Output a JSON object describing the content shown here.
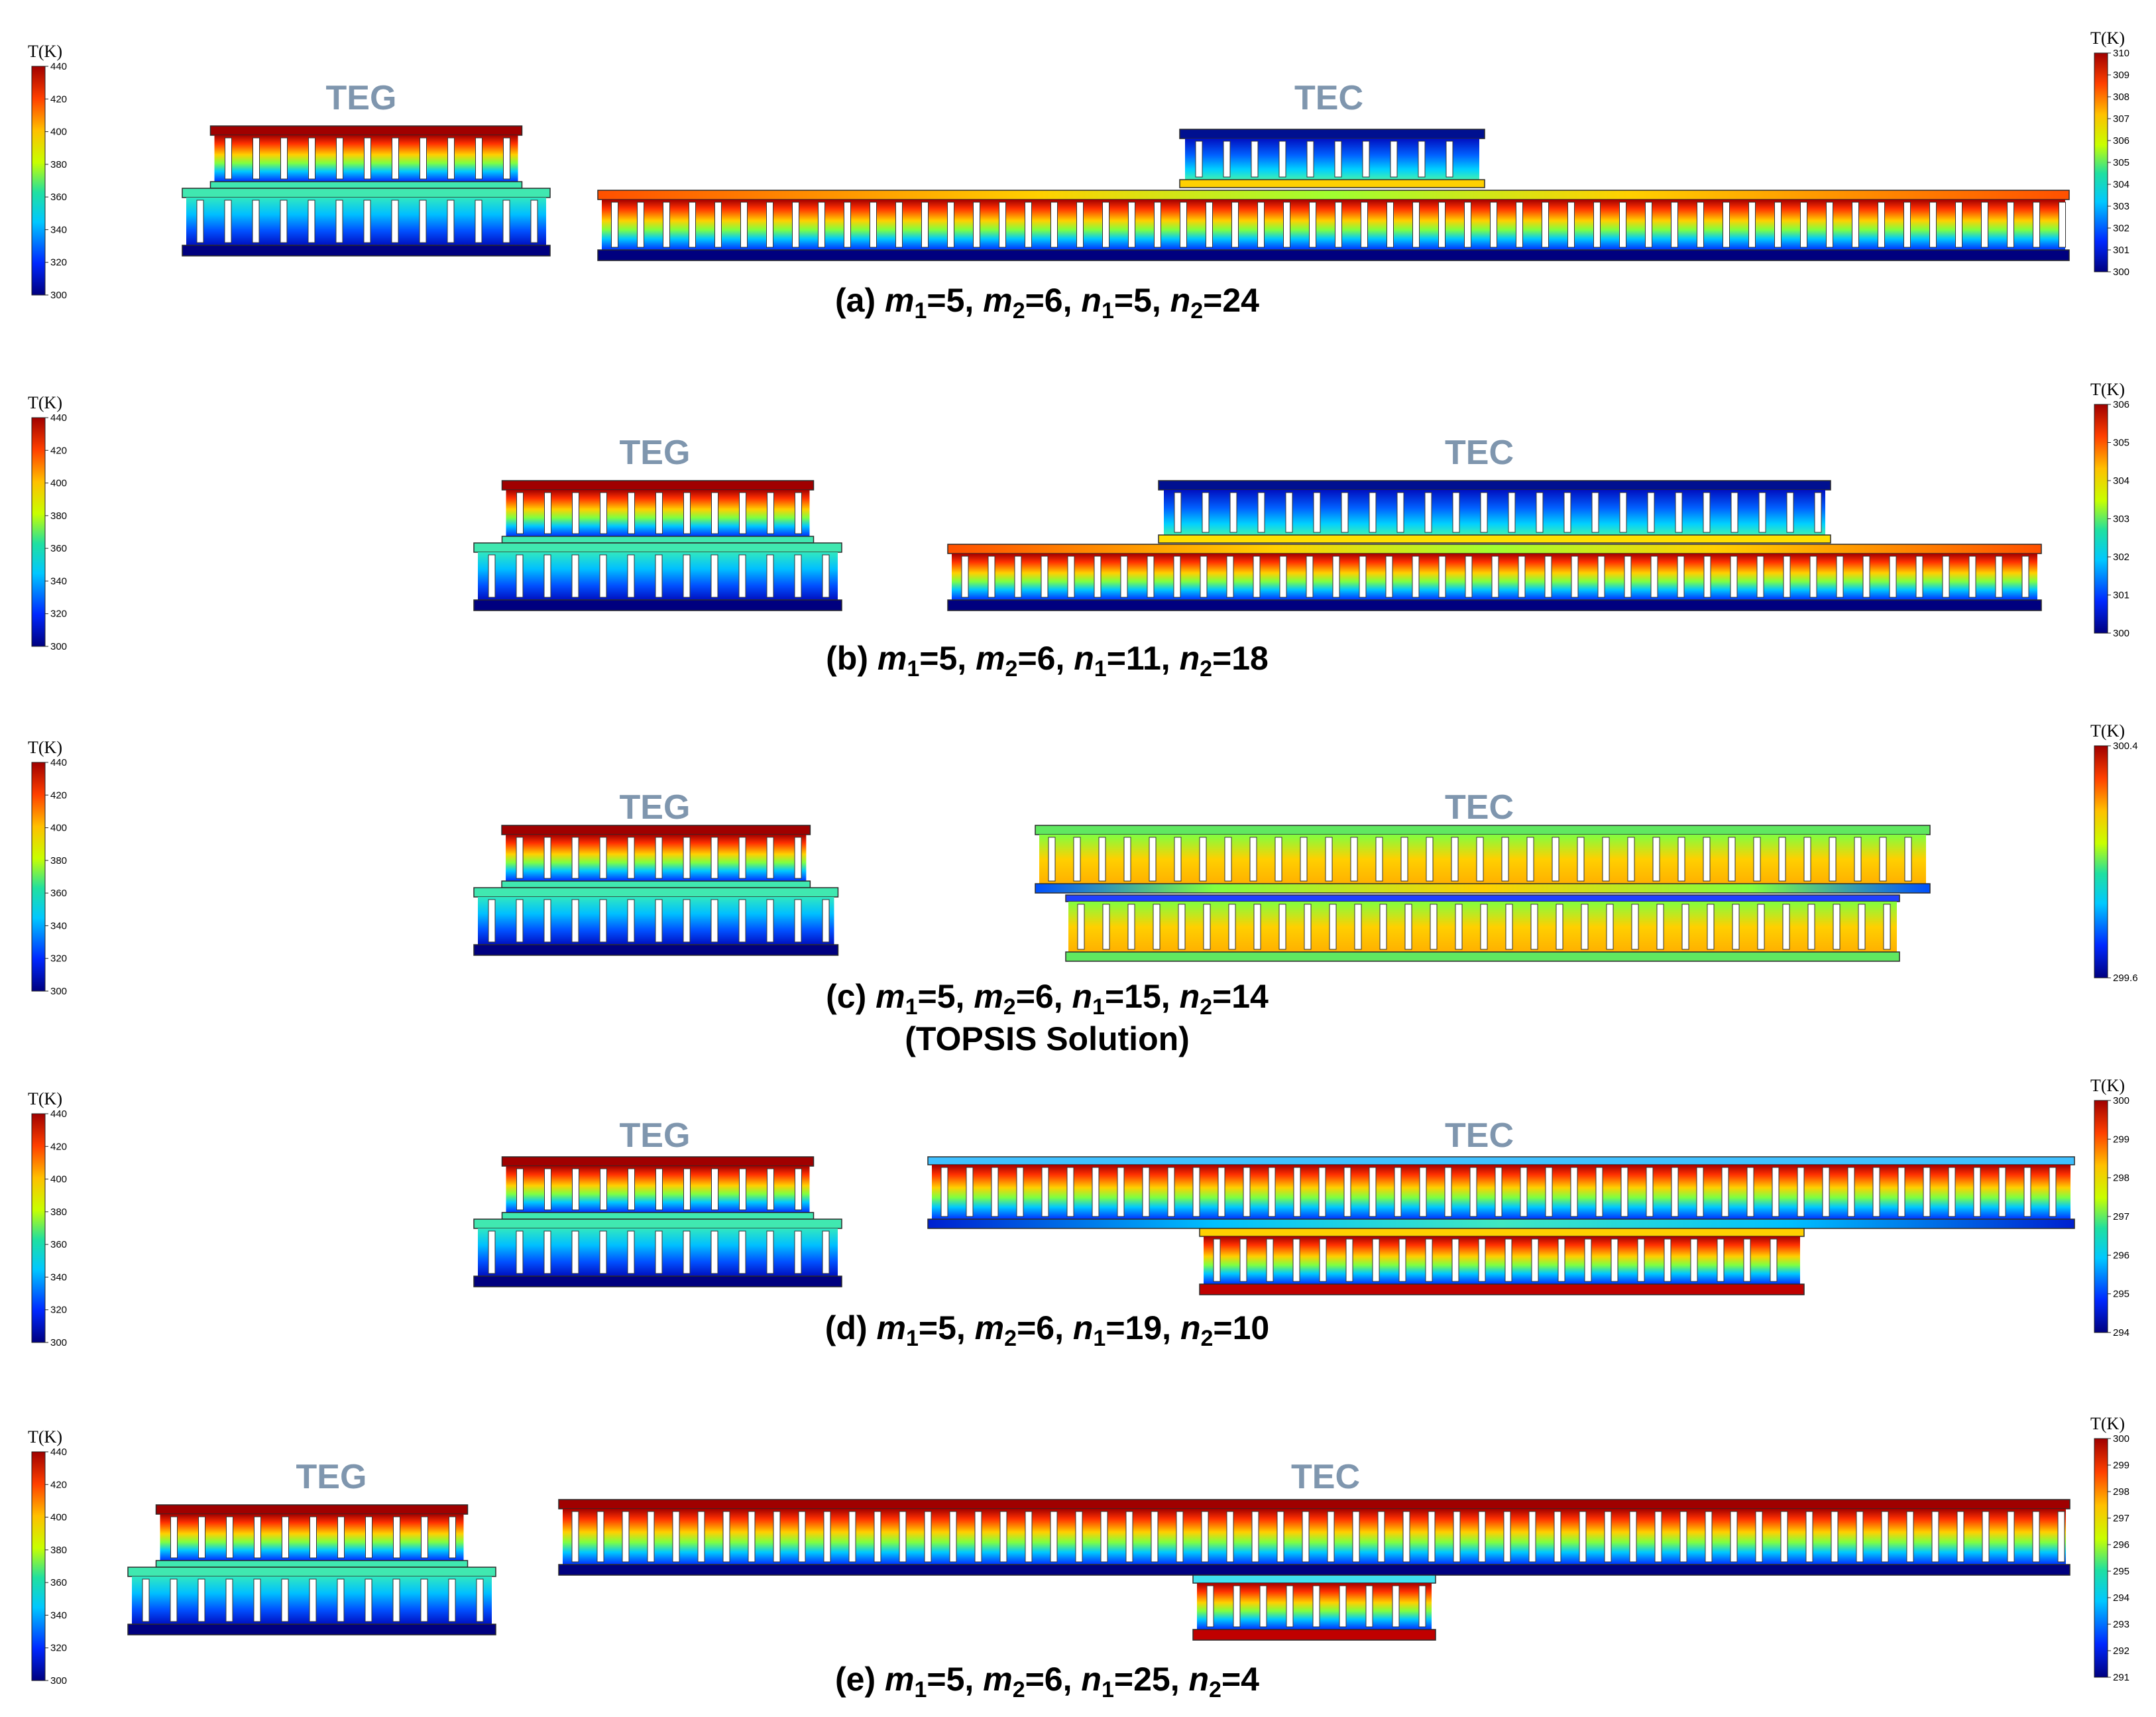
{
  "figure": {
    "teg_label": "TEG",
    "tec_label": "TEC",
    "colormap": [
      "#00007f",
      "#0028ff",
      "#00c8ff",
      "#20e0a0",
      "#c8ff00",
      "#ffc000",
      "#ff4000",
      "#a00000"
    ],
    "panels": [
      {
        "id": "a",
        "caption": {
          "pre": "(a) ",
          "m1": "5",
          "m2": "6",
          "n1": "5",
          "n2": "24",
          "sub": ""
        },
        "teg_colorbar": {
          "title": "T(K)",
          "ticks": [
            "440",
            "420",
            "400",
            "380",
            "360",
            "340",
            "320",
            "300"
          ]
        },
        "tec_colorbar": {
          "title": "T(K)",
          "ticks": [
            "310",
            "309",
            "308",
            "307",
            "306",
            "305",
            "304",
            "303",
            "302",
            "301",
            "300"
          ]
        }
      },
      {
        "id": "b",
        "caption": {
          "pre": "(b) ",
          "m1": "5",
          "m2": "6",
          "n1": "11",
          "n2": "18",
          "sub": ""
        },
        "teg_colorbar": {
          "title": "T(K)",
          "ticks": [
            "440",
            "420",
            "400",
            "380",
            "360",
            "340",
            "320",
            "300"
          ]
        },
        "tec_colorbar": {
          "title": "T(K)",
          "ticks": [
            "306",
            "305",
            "304",
            "303",
            "302",
            "301",
            "300"
          ]
        }
      },
      {
        "id": "c",
        "caption": {
          "pre": "(c) ",
          "m1": "5",
          "m2": "6",
          "n1": "15",
          "n2": "14",
          "sub": "(TOPSIS Solution)"
        },
        "teg_colorbar": {
          "title": "T(K)",
          "ticks": [
            "440",
            "420",
            "400",
            "380",
            "360",
            "340",
            "320",
            "300"
          ]
        },
        "tec_colorbar": {
          "title": "T(K)",
          "ticks": [
            "300.4",
            "299.6"
          ]
        }
      },
      {
        "id": "d",
        "caption": {
          "pre": "(d) ",
          "m1": "5",
          "m2": "6",
          "n1": "19",
          "n2": "10",
          "sub": ""
        },
        "teg_colorbar": {
          "title": "T(K)",
          "ticks": [
            "440",
            "420",
            "400",
            "380",
            "360",
            "340",
            "320",
            "300"
          ]
        },
        "tec_colorbar": {
          "title": "T(K)",
          "ticks": [
            "300",
            "299",
            "298",
            "297",
            "296",
            "295",
            "294"
          ]
        }
      },
      {
        "id": "e",
        "caption": {
          "pre": "(e) ",
          "m1": "5",
          "m2": "6",
          "n1": "25",
          "n2": "4",
          "sub": ""
        },
        "teg_colorbar": {
          "title": "T(K)",
          "ticks": [
            "440",
            "420",
            "400",
            "380",
            "360",
            "340",
            "320",
            "300"
          ]
        },
        "tec_colorbar": {
          "title": "T(K)",
          "ticks": [
            "300",
            "299",
            "298",
            "297",
            "296",
            "295",
            "294",
            "293",
            "292",
            "291"
          ]
        }
      }
    ]
  }
}
